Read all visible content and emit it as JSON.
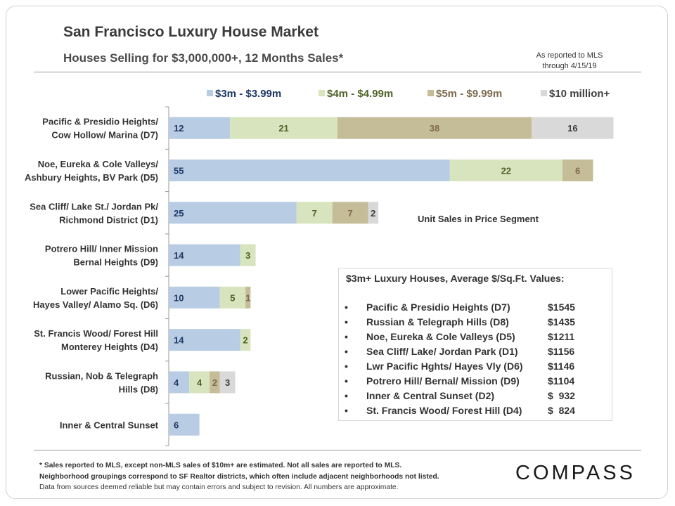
{
  "header": {
    "title": "San Francisco Luxury House Market",
    "subtitle": "Houses Selling for $3,000,000+, 12 Months Sales*",
    "asof_line1": "As reported to MLS",
    "asof_line2": "through 4/15/19"
  },
  "chart_data": {
    "type": "bar",
    "orientation": "horizontal",
    "stacked": true,
    "categories": [
      [
        "Pacific & Presidio Heights/",
        "Cow Hollow/ Marina (D7)"
      ],
      [
        "Noe, Eureka & Cole Valleys/",
        "Ashbury Heights, BV Park (D5)"
      ],
      [
        "Sea Cliff/ Lake St./ Jordan Pk/",
        "Richmond District (D1)"
      ],
      [
        "Potrero Hill/ Inner Mission",
        "Bernal Heights (D9)"
      ],
      [
        "Lower Pacific Heights/",
        "Hayes Valley/ Alamo Sq. (D6)"
      ],
      [
        "St. Francis Wood/ Forest Hill",
        "Monterey Heights (D4)"
      ],
      [
        "Russian, Nob & Telegraph",
        "Hills (D8)"
      ],
      [
        "Inner & Central Sunset"
      ]
    ],
    "series": [
      {
        "name": "$3m - $3.99m",
        "color": "#b8cce4",
        "label_color": "#1f3864",
        "values": [
          12,
          55,
          25,
          14,
          10,
          14,
          4,
          6
        ]
      },
      {
        "name": "$4m - $4.99m",
        "color": "#d7e4bd",
        "label_color": "#4f6228",
        "values": [
          21,
          22,
          7,
          3,
          5,
          2,
          4,
          0
        ]
      },
      {
        "name": "$5m - $9.99m",
        "color": "#c4bd97",
        "label_color": "#7f6a4d",
        "values": [
          38,
          6,
          7,
          0,
          1,
          0,
          2,
          0
        ]
      },
      {
        "name": "$10 million+",
        "color": "#d9d9d9",
        "label_color": "#404040",
        "values": [
          16,
          0,
          2,
          0,
          0,
          0,
          3,
          0
        ]
      }
    ],
    "legend_position": "top",
    "axis_label": "Unit Sales in Price Segment",
    "xlim": [
      0,
      88
    ]
  },
  "info_box": {
    "title": "$3m+ Luxury Houses, Average $/Sq.Ft. Values:",
    "bullet": "•",
    "items": [
      {
        "name": "Pacific & Presidio Heights (D7)",
        "value": "$1545"
      },
      {
        "name": "Russian & Telegraph Hills (D8)",
        "value": "$1435"
      },
      {
        "name": "Noe, Eureka & Cole Valleys (D5)",
        "value": "$1211"
      },
      {
        "name": "Sea Cliff/ Lake/ Jordan Park (D1)",
        "value": "$1156"
      },
      {
        "name": "Lwr Pacific Hghts/ Hayes Vly (D6)",
        "value": "$1146"
      },
      {
        "name": "Potrero Hill/ Bernal/ Mission (D9)",
        "value": "$1104"
      },
      {
        "name": "Inner & Central Sunset (D2)",
        "value": "$  932"
      },
      {
        "name": "St. Francis Wood/ Forest Hill (D4)",
        "value": "$  824"
      }
    ]
  },
  "footnote": {
    "line1": "* Sales reported to MLS, except non-MLS sales of $10m+ are estimated. Not all sales are reported to MLS.",
    "line2": "Neighborhood groupings correspond to SF Realtor districts, which often include adjacent neighborhoods not listed.",
    "line3": "Data from sources deemed reliable but may contain errors and subject to revision. All numbers are approximate."
  },
  "brand": {
    "logo": "COMPASS"
  }
}
